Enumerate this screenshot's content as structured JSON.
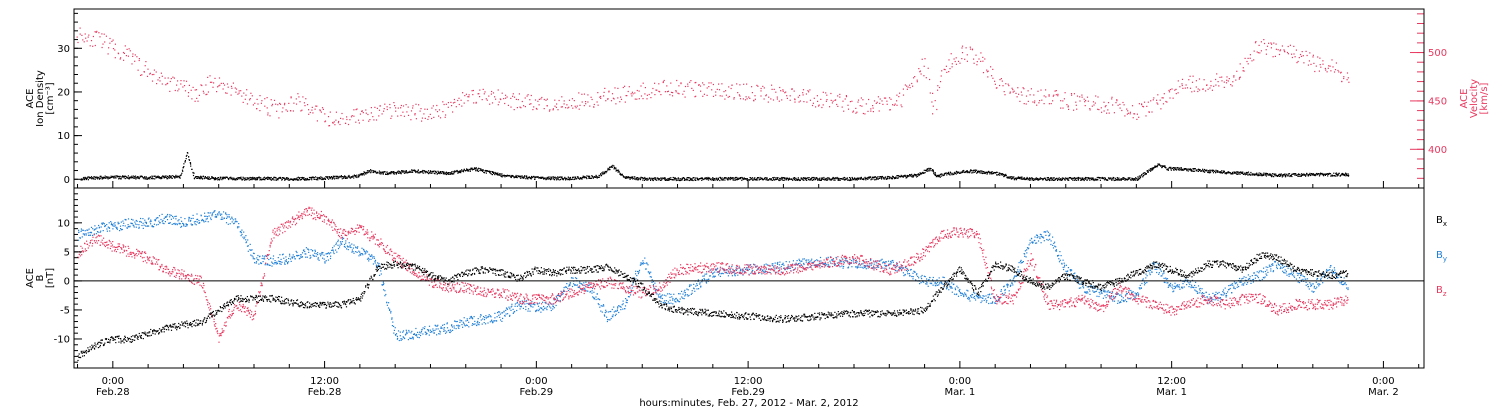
{
  "colors": {
    "black": "#000000",
    "pink": "#e8385f",
    "blue": "#1e7fd8"
  },
  "x_axis": {
    "title": "hours:minutes, Feb. 27, 2012 - Mar.  2, 2012",
    "range_hours": [
      -2.2,
      74.3
    ],
    "ticks": [
      {
        "hours": 0,
        "time": "0:00",
        "date": "Feb.28"
      },
      {
        "hours": 12,
        "time": "12:00",
        "date": "Feb.28"
      },
      {
        "hours": 24,
        "time": "0:00",
        "date": "Feb.29"
      },
      {
        "hours": 36,
        "time": "12:00",
        "date": "Feb.29"
      },
      {
        "hours": 48,
        "time": "0:00",
        "date": "Mar. 1"
      },
      {
        "hours": 60,
        "time": "12:00",
        "date": "Mar. 1"
      },
      {
        "hours": 72,
        "time": "0:00",
        "date": "Mar. 2"
      }
    ]
  },
  "chart_data": [
    {
      "type": "scatter",
      "panel": "top",
      "left_axis": {
        "label_lines": [
          "ACE",
          "Ion Density",
          "[cm⁻³]"
        ],
        "ylim": [
          -2,
          39
        ],
        "ticks": [
          0,
          10,
          20,
          30
        ],
        "color": "#000000"
      },
      "right_axis": {
        "label_lines": [
          "ACE",
          "Velocity",
          "[km/s]"
        ],
        "ylim": [
          360,
          545
        ],
        "ticks": [
          400,
          450,
          500
        ],
        "color": "#e8385f"
      },
      "series": [
        {
          "axis": "left",
          "color": "#000000",
          "x": [
            -1.8,
            0,
            2,
            3.8,
            4.2,
            4.6,
            6,
            8,
            10,
            12,
            13.8,
            14.5,
            15.5,
            17,
            19,
            20.5,
            22,
            24,
            26,
            27.5,
            28.3,
            29,
            30,
            32,
            34,
            36,
            38,
            40,
            42,
            44,
            45.5,
            46.3,
            46.7,
            47.5,
            48.5,
            50,
            51,
            52,
            54,
            56,
            58,
            59.2,
            59.8,
            60.5,
            62,
            64,
            66,
            68,
            70
          ],
          "y": [
            0.3,
            0.6,
            0.5,
            0.7,
            6,
            0.6,
            0.3,
            0.3,
            0.2,
            0.4,
            0.8,
            2,
            1.5,
            2,
            1.5,
            2.5,
            1,
            0.4,
            0.3,
            0.8,
            3,
            0.6,
            0.2,
            0.2,
            0.2,
            0.2,
            0.2,
            0.2,
            0.2,
            0.5,
            1,
            2.5,
            0.8,
            1.5,
            2,
            1.5,
            0.4,
            0.2,
            0.2,
            0.2,
            0.2,
            3.5,
            2.5,
            2.5,
            2,
            1.5,
            1,
            1.2,
            1.2
          ]
        },
        {
          "axis": "right",
          "color": "#e8385f",
          "x": [
            -2,
            -1,
            0,
            1,
            2,
            3,
            4,
            4.8,
            5.5,
            6.5,
            7.5,
            8.5,
            9.5,
            10.5,
            11.5,
            12.5,
            13.5,
            14.5,
            15.5,
            16.5,
            17.5,
            18.5,
            19.5,
            20.5,
            21.5,
            22.5,
            23.5,
            24.5,
            25.5,
            26.5,
            28,
            29.5,
            31,
            32.5,
            34,
            35.5,
            37,
            38.5,
            40,
            41.5,
            43,
            44.5,
            45.5,
            46,
            46.5,
            47,
            47.5,
            48.2,
            49,
            50,
            51,
            52,
            53,
            54,
            55,
            56,
            57,
            58,
            59,
            60,
            61,
            62,
            63,
            63.8,
            64.5,
            65,
            66,
            67,
            68,
            69,
            70
          ],
          "y": [
            520,
            515,
            505,
            495,
            480,
            470,
            465,
            455,
            470,
            465,
            455,
            447,
            440,
            450,
            438,
            430,
            435,
            435,
            440,
            440,
            438,
            440,
            450,
            457,
            455,
            450,
            448,
            448,
            450,
            450,
            455,
            460,
            463,
            463,
            462,
            460,
            458,
            457,
            452,
            448,
            445,
            450,
            470,
            490,
            440,
            480,
            492,
            500,
            496,
            470,
            460,
            455,
            455,
            450,
            448,
            447,
            445,
            440,
            445,
            460,
            468,
            470,
            470,
            480,
            500,
            508,
            502,
            498,
            490,
            485,
            475
          ]
        }
      ]
    },
    {
      "type": "scatter",
      "panel": "bottom",
      "left_axis": {
        "label_lines": [
          "ACE",
          "B",
          "[nT]"
        ],
        "ylim": [
          -15,
          16
        ],
        "ticks": [
          -10,
          -5,
          0,
          5,
          10
        ],
        "color": "#000000"
      },
      "zero_line": true,
      "series": [
        {
          "name": "Bx",
          "color": "#000000",
          "x": [
            -2,
            -1,
            0,
            1,
            2,
            3,
            4,
            5,
            6,
            7,
            8,
            9,
            10,
            11,
            12,
            13,
            14,
            15,
            16,
            17,
            18,
            19,
            20,
            21,
            22,
            23,
            24,
            25,
            26,
            27,
            28,
            29,
            30,
            31,
            32,
            34,
            36,
            38,
            40,
            42,
            44,
            46,
            47,
            48,
            49,
            50,
            51,
            52,
            53,
            54,
            55,
            56,
            57,
            58,
            59,
            60,
            61,
            62,
            63,
            64,
            65,
            66,
            67,
            68,
            69,
            70
          ],
          "y": [
            -13,
            -11,
            -10,
            -10,
            -9,
            -8,
            -7.5,
            -7,
            -5,
            -3,
            -3,
            -3,
            -3.5,
            -4,
            -4,
            -4,
            -3,
            2.5,
            3,
            2.5,
            1,
            0,
            1.5,
            2,
            1.5,
            0.5,
            2,
            1.5,
            2,
            2,
            2.5,
            1,
            -1,
            -4,
            -5,
            -5.5,
            -6,
            -6.5,
            -6,
            -5.5,
            -5.5,
            -5,
            -1,
            2,
            -2,
            3,
            2,
            0,
            -1,
            1,
            0,
            -1,
            0,
            1.5,
            3,
            2,
            1,
            3,
            3,
            2,
            4.5,
            4,
            2,
            1.5,
            1,
            1.5
          ]
        },
        {
          "name": "By",
          "color": "#1e7fd8",
          "x": [
            -2,
            -1,
            0,
            1,
            2,
            3,
            4,
            5,
            6,
            7,
            8,
            9,
            10,
            11,
            12,
            13,
            14,
            15,
            16,
            17,
            18,
            19,
            20,
            21,
            22,
            23,
            24,
            25,
            26,
            27,
            28,
            29,
            30,
            31,
            32,
            34,
            36,
            38,
            40,
            42,
            44,
            46,
            47,
            48,
            49,
            50,
            51,
            52,
            53,
            54,
            55,
            56,
            57,
            58,
            59,
            60,
            61,
            62,
            63,
            64,
            65,
            66,
            67,
            68,
            69,
            70
          ],
          "y": [
            8,
            9,
            9.5,
            10,
            10,
            11,
            10,
            11,
            11.5,
            10,
            4,
            3.5,
            4,
            5,
            4,
            7,
            5,
            3,
            -9.5,
            -9,
            -8.5,
            -8,
            -7,
            -6.5,
            -6,
            -4,
            -4.5,
            -4,
            0,
            -1,
            -6,
            -4,
            4,
            -3,
            -3,
            1.5,
            2,
            2.5,
            3.5,
            3,
            3,
            0,
            0,
            -2,
            -3,
            -3,
            0,
            7,
            8,
            2,
            -1,
            -2,
            -3,
            -2,
            3,
            -1,
            0,
            -3,
            -2,
            0,
            1,
            3,
            1,
            -1,
            2,
            -1
          ]
        },
        {
          "name": "Bz",
          "color": "#e8385f",
          "x": [
            -2,
            -1,
            0,
            1,
            2,
            3,
            4,
            5,
            5.5,
            6,
            6.5,
            7,
            8,
            9,
            10,
            11,
            12,
            13,
            14,
            15,
            16,
            17,
            18,
            19,
            20,
            21,
            22,
            23,
            24,
            25,
            26,
            27,
            28,
            29,
            30,
            31,
            32,
            34,
            36,
            38,
            40,
            42,
            44,
            45,
            46,
            47,
            48,
            49,
            50,
            51,
            52,
            53,
            54,
            55,
            56,
            57,
            58,
            59,
            60,
            61,
            62,
            63,
            64,
            65,
            66,
            67,
            68,
            69,
            70
          ],
          "y": [
            5,
            7.5,
            6,
            5,
            4,
            2,
            1,
            0,
            -5,
            -10,
            -6,
            -4,
            -6,
            8,
            10,
            12,
            11,
            8,
            9,
            7,
            4,
            2,
            0,
            -1,
            -1,
            -2,
            -2,
            -3,
            -3,
            -3,
            -2,
            -1,
            0,
            -1,
            -2,
            -1,
            2,
            2.5,
            2,
            2,
            3,
            4,
            2,
            3,
            5,
            8,
            8.5,
            8,
            -3,
            -3,
            4,
            -4,
            -4,
            -3,
            -5,
            -1,
            -3,
            -4,
            -5,
            -4,
            -3,
            -4,
            -3,
            -3,
            -5,
            -4,
            -4,
            -4,
            -3
          ]
        }
      ]
    }
  ]
}
